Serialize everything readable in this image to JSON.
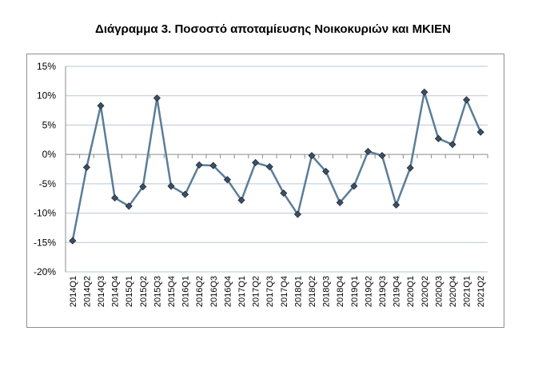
{
  "chart_data": {
    "type": "line",
    "title": "Διάγραμμα 3. Ποσοστό αποταμίευσης Νοικοκυριών και ΜΚΙΕΝ",
    "xlabel": "",
    "ylabel": "",
    "ylim": [
      -20,
      15
    ],
    "yticks": [
      "15%",
      "10%",
      "5%",
      "0%",
      "-5%",
      "-10%",
      "-15%",
      "-20%"
    ],
    "ytick_values": [
      15,
      10,
      5,
      0,
      -5,
      -10,
      -15,
      -20
    ],
    "grid": true,
    "legend": "none",
    "categories": [
      "2014Q1",
      "2014Q2",
      "2014Q3",
      "2014Q4",
      "2015Q1",
      "2015Q2",
      "2015Q3",
      "2015Q4",
      "2016Q1",
      "2016Q2",
      "2016Q3",
      "2016Q4",
      "2017Q1",
      "2017Q2",
      "2017Q3",
      "2017Q4",
      "2018Q1",
      "2018Q2",
      "2018Q3",
      "2018Q4",
      "2019Q1",
      "2019Q2",
      "2019Q3",
      "2019Q4",
      "2020Q1",
      "2020Q2",
      "2020Q3",
      "2020Q4",
      "2021Q1",
      "2021Q2"
    ],
    "series": [
      {
        "values": [
          -14.7,
          -2.2,
          8.3,
          -7.4,
          -8.8,
          -5.5,
          9.6,
          -5.4,
          -6.8,
          -1.8,
          -1.9,
          -4.3,
          -7.8,
          -1.4,
          -2.1,
          -6.6,
          -10.2,
          -0.2,
          -2.9,
          -8.2,
          -5.4,
          0.5,
          -0.2,
          -8.6,
          -2.3,
          10.6,
          2.7,
          1.7,
          9.3,
          3.8
        ],
        "color": "#5b7d99",
        "marker_color": "#3e4f63"
      }
    ]
  }
}
